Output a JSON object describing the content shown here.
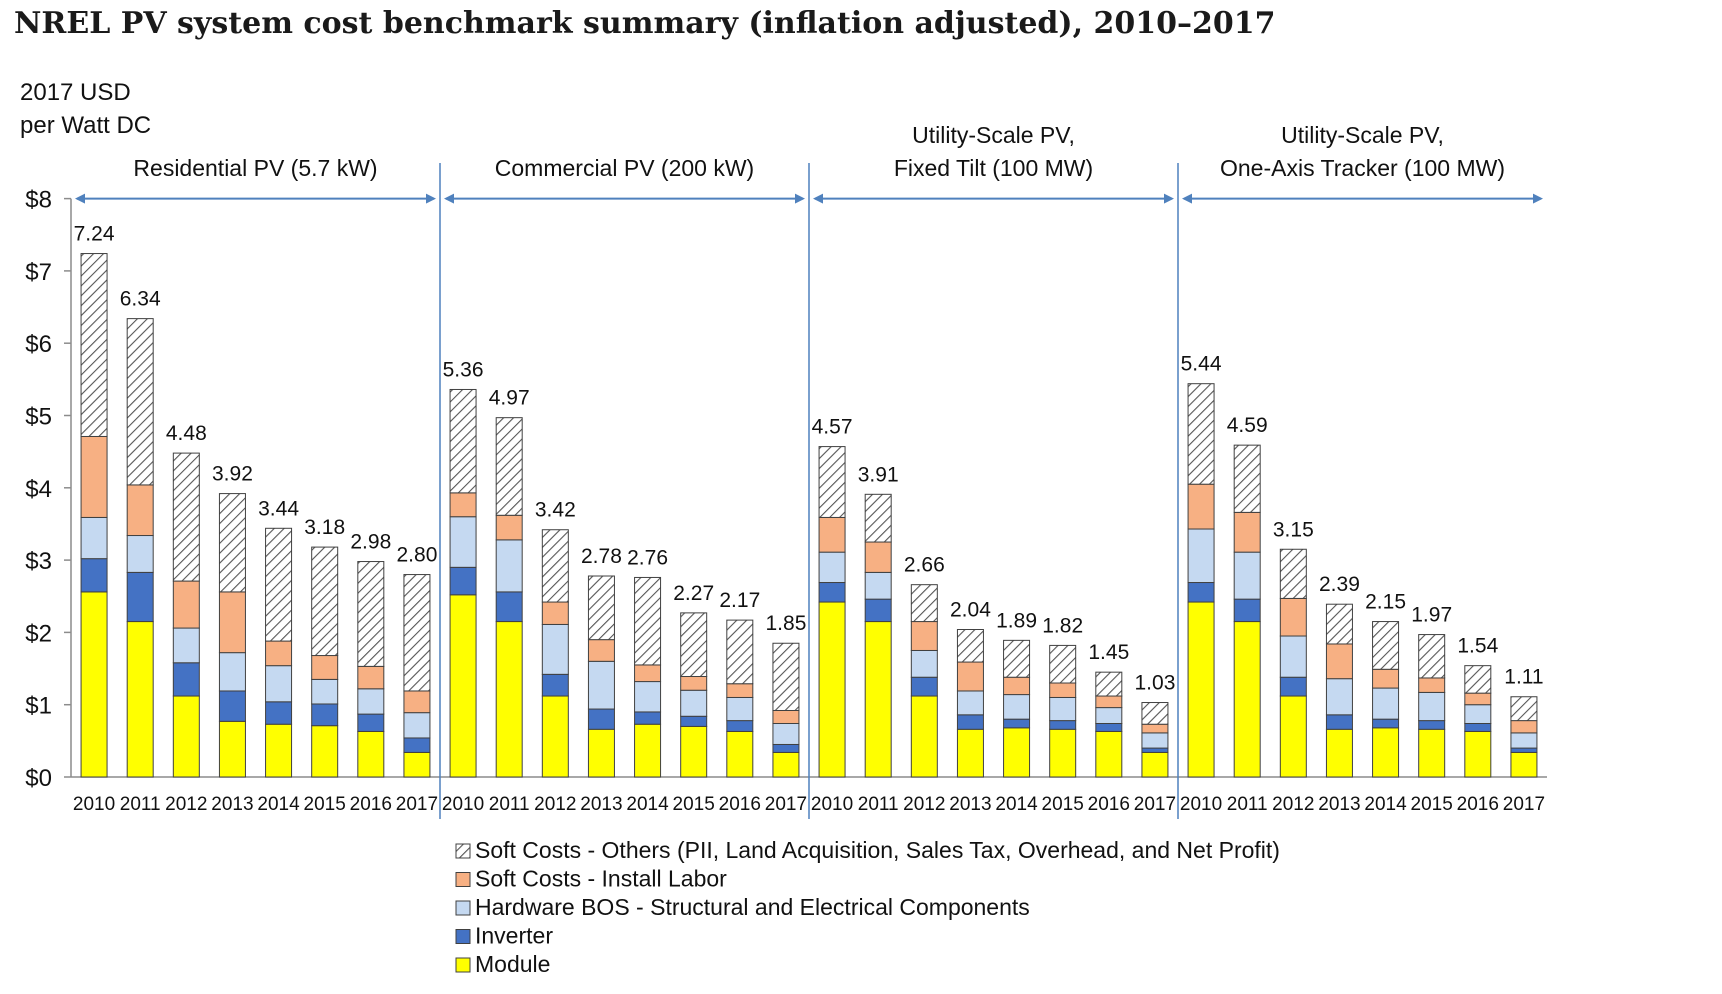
{
  "page": {
    "title": "NREL PV system cost benchmark summary (inflation adjusted), 2010–2017"
  },
  "chart_data": {
    "type": "bar",
    "stacked": true,
    "ylabel": [
      "2017 USD",
      "per Watt DC"
    ],
    "ylim": [
      0,
      8
    ],
    "yticks": [
      "$0",
      "$1",
      "$2",
      "$3",
      "$4",
      "$5",
      "$6",
      "$7",
      "$8"
    ],
    "categories": [
      "2010",
      "2011",
      "2012",
      "2013",
      "2014",
      "2015",
      "2016",
      "2017"
    ],
    "legend": [
      {
        "key": "soft_others",
        "label": "Soft Costs - Others (PII, Land Acquisition, Sales Tax, Overhead, and Net Profit)",
        "color": "#ffffff",
        "pattern": "hatch"
      },
      {
        "key": "install_labor",
        "label": "Soft Costs - Install Labor",
        "color": "#f7b083"
      },
      {
        "key": "hardware_bos",
        "label": "Hardware BOS - Structural and Electrical Components",
        "color": "#c5d9f1"
      },
      {
        "key": "inverter",
        "label": "Inverter",
        "color": "#4472c4"
      },
      {
        "key": "module",
        "label": "Module",
        "color": "#ffff00"
      }
    ],
    "groups": [
      {
        "title": [
          "Residential PV (5.7 kW)"
        ],
        "totals": [
          "7.24",
          "6.34",
          "4.48",
          "3.92",
          "3.44",
          "3.18",
          "2.98",
          "2.80"
        ],
        "module": [
          2.56,
          2.15,
          1.12,
          0.77,
          0.73,
          0.71,
          0.63,
          0.34
        ],
        "inverter": [
          0.46,
          0.68,
          0.46,
          0.42,
          0.31,
          0.3,
          0.24,
          0.2
        ],
        "hardware_bos": [
          0.57,
          0.51,
          0.48,
          0.53,
          0.5,
          0.34,
          0.35,
          0.35
        ],
        "install_labor": [
          1.12,
          0.7,
          0.65,
          0.84,
          0.34,
          0.33,
          0.31,
          0.3
        ],
        "soft_others": [
          2.53,
          2.3,
          1.77,
          1.36,
          1.56,
          1.5,
          1.45,
          1.61
        ]
      },
      {
        "title": [
          "Commercial PV (200 kW)"
        ],
        "totals": [
          "5.36",
          "4.97",
          "3.42",
          "2.78",
          "2.76",
          "2.27",
          "2.17",
          "1.85"
        ],
        "module": [
          2.52,
          2.15,
          1.12,
          0.66,
          0.73,
          0.7,
          0.63,
          0.34
        ],
        "inverter": [
          0.38,
          0.41,
          0.3,
          0.28,
          0.17,
          0.14,
          0.15,
          0.11
        ],
        "hardware_bos": [
          0.7,
          0.72,
          0.69,
          0.66,
          0.42,
          0.36,
          0.32,
          0.29
        ],
        "install_labor": [
          0.33,
          0.34,
          0.31,
          0.3,
          0.23,
          0.19,
          0.19,
          0.18
        ],
        "soft_others": [
          1.43,
          1.35,
          1.0,
          0.88,
          1.21,
          0.88,
          0.88,
          0.93
        ]
      },
      {
        "title": [
          "Utility-Scale PV,",
          "Fixed Tilt (100 MW)"
        ],
        "totals": [
          "4.57",
          "3.91",
          "2.66",
          "2.04",
          "1.89",
          "1.82",
          "1.45",
          "1.03"
        ],
        "module": [
          2.42,
          2.15,
          1.12,
          0.66,
          0.68,
          0.66,
          0.63,
          0.34
        ],
        "inverter": [
          0.27,
          0.31,
          0.26,
          0.2,
          0.12,
          0.12,
          0.11,
          0.06
        ],
        "hardware_bos": [
          0.42,
          0.37,
          0.37,
          0.33,
          0.34,
          0.32,
          0.22,
          0.21
        ],
        "install_labor": [
          0.48,
          0.42,
          0.4,
          0.4,
          0.24,
          0.2,
          0.16,
          0.12
        ],
        "soft_others": [
          0.98,
          0.66,
          0.51,
          0.45,
          0.51,
          0.52,
          0.33,
          0.3
        ]
      },
      {
        "title": [
          "Utility-Scale PV,",
          "One-Axis Tracker (100 MW)"
        ],
        "totals": [
          "5.44",
          "4.59",
          "3.15",
          "2.39",
          "2.15",
          "1.97",
          "1.54",
          "1.11"
        ],
        "module": [
          2.42,
          2.15,
          1.12,
          0.66,
          0.68,
          0.66,
          0.63,
          0.34
        ],
        "inverter": [
          0.27,
          0.31,
          0.26,
          0.2,
          0.12,
          0.12,
          0.11,
          0.06
        ],
        "hardware_bos": [
          0.74,
          0.65,
          0.57,
          0.5,
          0.43,
          0.39,
          0.26,
          0.21
        ],
        "install_labor": [
          0.62,
          0.55,
          0.52,
          0.48,
          0.26,
          0.2,
          0.16,
          0.17
        ],
        "soft_others": [
          1.39,
          0.93,
          0.68,
          0.55,
          0.66,
          0.6,
          0.38,
          0.33
        ]
      }
    ]
  }
}
